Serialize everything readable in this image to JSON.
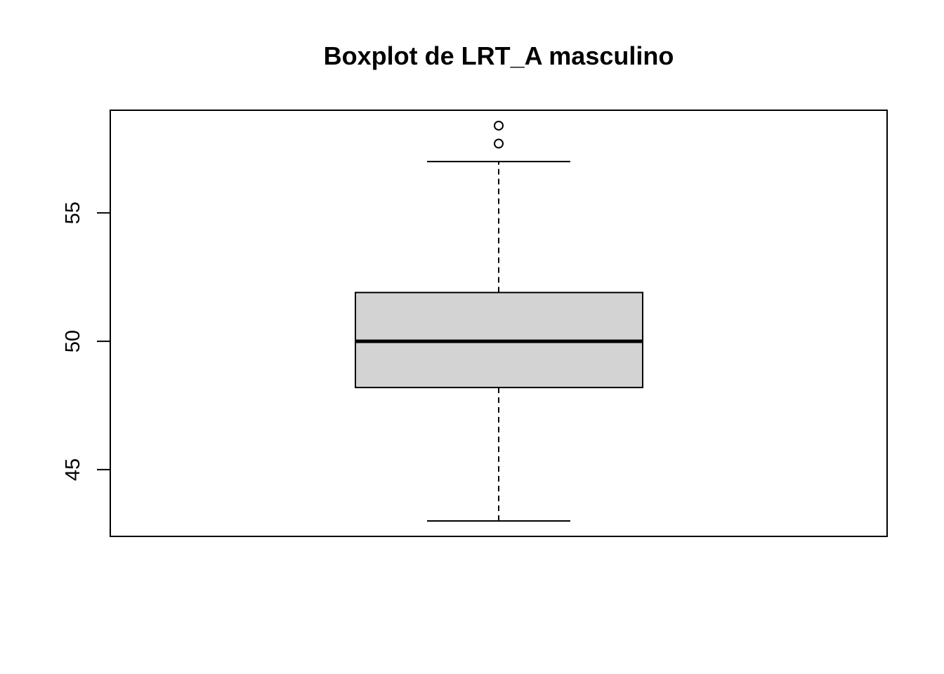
{
  "chart_data": {
    "type": "boxplot",
    "title": "Boxplot de LRT_A masculino",
    "xlabel": "",
    "ylabel": "",
    "ylim": [
      42.4,
      59.0
    ],
    "yticks": [
      45,
      50,
      55
    ],
    "grid": false,
    "legend": "none",
    "box": {
      "whisker_low": 43.0,
      "q1": 48.2,
      "median": 50.0,
      "q3": 51.9,
      "whisker_high": 57.0,
      "outliers": [
        57.7,
        58.4
      ]
    },
    "colors": {
      "box_fill": "#d3d3d3",
      "stroke": "#000000",
      "background": "#ffffff"
    }
  }
}
